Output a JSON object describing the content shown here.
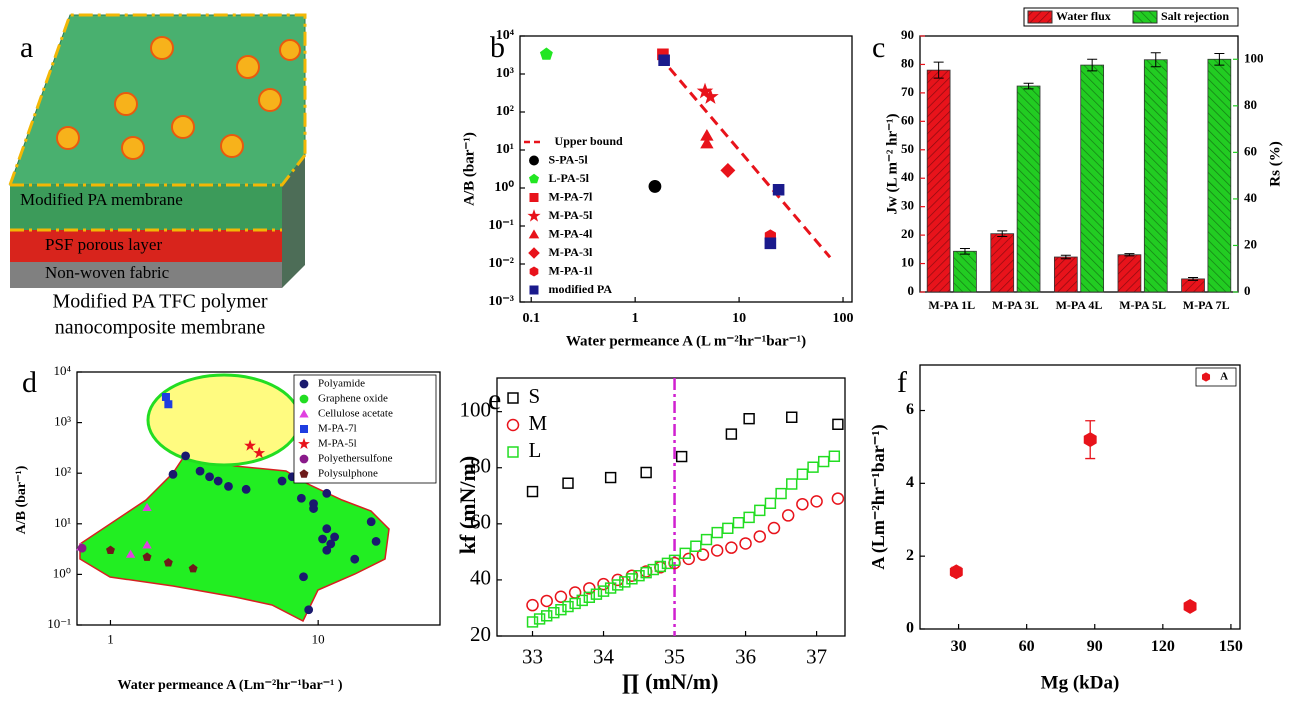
{
  "diagram": {
    "label": "a",
    "layers": [
      "Modified PA membrane",
      "PSF porous layer",
      "Non-woven fabric"
    ],
    "caption": [
      "Modified PA TFC polymer",
      "nanocomposite membrane"
    ]
  },
  "chart_data": [
    {
      "type": "scatter",
      "label": "b",
      "xlabel": "Water permeance A (L m⁻²hr⁻¹bar⁻¹)",
      "ylabel": "A/B (bar⁻¹)",
      "xscale": "log",
      "yscale": "log",
      "xlim": [
        0.078,
        122
      ],
      "ylim": [
        0.001,
        10000
      ],
      "xticks": [
        0.1,
        1,
        10,
        100
      ],
      "yticks": [
        {
          "value": 0.001,
          "label": "10⁻³"
        },
        {
          "value": 0.01,
          "label": "10⁻²"
        },
        {
          "value": 0.1,
          "label": "10⁻¹"
        },
        {
          "value": 1,
          "label": "10⁰"
        },
        {
          "value": 10,
          "label": "10¹"
        },
        {
          "value": 100,
          "label": "10²"
        },
        {
          "value": 1000,
          "label": "10³"
        },
        {
          "value": 10000,
          "label": "10⁴"
        }
      ],
      "legend": "lower left",
      "series": [
        {
          "name": "Upper bound",
          "color": "#e8131b",
          "style": "dashed",
          "x": [
            1.7,
            75
          ],
          "y": [
            3000,
            0.015
          ]
        },
        {
          "name": "S-PA-5l",
          "color": "#000000",
          "marker": "circle",
          "x": [
            1.55
          ],
          "y": [
            1.1
          ]
        },
        {
          "name": "L-PA-5l",
          "color": "#22e622",
          "marker": "pentagon",
          "x": [
            0.14
          ],
          "y": [
            3300
          ]
        },
        {
          "name": "M-PA-7l",
          "color": "#e8131b",
          "marker": "square",
          "x": [
            1.85
          ],
          "y": [
            3300
          ]
        },
        {
          "name": "M-PA-5l",
          "color": "#e8131b",
          "marker": "star",
          "x": [
            4.7,
            5.3
          ],
          "y": [
            350,
            250
          ]
        },
        {
          "name": "M-PA-4l",
          "color": "#e8131b",
          "marker": "triangle",
          "x": [
            4.9,
            4.9
          ],
          "y": [
            24,
            15
          ]
        },
        {
          "name": "M-PA-3l",
          "color": "#e8131b",
          "marker": "diamond",
          "x": [
            7.8
          ],
          "y": [
            2.9
          ]
        },
        {
          "name": "M-PA-1l",
          "color": "#e8131b",
          "marker": "hexagon",
          "x": [
            20
          ],
          "y": [
            0.055
          ]
        },
        {
          "name": "modified PA",
          "color": "#1a1a8c",
          "marker": "square",
          "x": [
            1.9,
            20,
            24
          ],
          "y": [
            2300,
            0.035,
            0.9
          ]
        }
      ]
    },
    {
      "type": "bar",
      "label": "c",
      "ylabel": "Jw (L m⁻² hr⁻¹)",
      "y2label": "Rs (%)",
      "categories": [
        "M-PA 1L",
        "M-PA 3L",
        "M-PA 4L",
        "M-PA 5L",
        "M-PA 7L"
      ],
      "ylim": [
        0,
        90
      ],
      "yticks": [
        0,
        10,
        20,
        30,
        40,
        50,
        60,
        70,
        80,
        90
      ],
      "y2lim": [
        0,
        110
      ],
      "y2ticks": [
        0,
        20,
        40,
        60,
        80,
        100
      ],
      "legend": "top",
      "series": [
        {
          "name": "Water flux",
          "color": "#e8131b",
          "values": [
            78,
            20.5,
            12.3,
            13.1,
            4.6
          ],
          "errors": [
            2.8,
            1,
            0.6,
            0.4,
            0.5
          ]
        },
        {
          "name": "Salt rejection",
          "color": "#22cc22",
          "axis": "y2",
          "values": [
            17.5,
            88.5,
            97.5,
            99.8,
            100
          ],
          "errors": [
            1.2,
            1.2,
            2.5,
            3,
            2.5
          ]
        }
      ]
    },
    {
      "type": "scatter",
      "label": "d",
      "xlabel": "Water permeance A (Lm⁻²hr⁻¹bar⁻¹ )",
      "ylabel": "A/B (bar⁻¹)",
      "xscale": "log",
      "yscale": "log",
      "xlim": [
        0.69,
        38.6
      ],
      "ylim": [
        0.1,
        10000
      ],
      "xticks": [
        1,
        10
      ],
      "yticks": [
        {
          "value": 0.1,
          "label": "10⁻¹"
        },
        {
          "value": 1,
          "label": "10⁰"
        },
        {
          "value": 10,
          "label": "10¹"
        },
        {
          "value": 100,
          "label": "10²"
        },
        {
          "value": 1000,
          "label": "10³"
        },
        {
          "value": 10000,
          "label": "10⁴"
        }
      ],
      "legend": "upper right",
      "series": [
        {
          "name": "Polyamide",
          "color": "#1a1a6e",
          "marker": "circle",
          "x": [
            2.0,
            2.3,
            2.7,
            3.0,
            3.3,
            3.7,
            4.5,
            6.7,
            7.5,
            8.3,
            9.5,
            9.5,
            8.5,
            9.0,
            11,
            11,
            11,
            12,
            11.5,
            10.5,
            15,
            18,
            19
          ],
          "y": [
            95,
            220,
            110,
            85,
            70,
            55,
            48,
            70,
            85,
            32,
            25,
            20,
            0.9,
            0.2,
            40,
            8,
            3,
            5.5,
            4,
            5,
            2,
            11,
            4.5
          ]
        },
        {
          "name": "Graphene oxide",
          "color": "#22dd22",
          "marker": "circle",
          "x": [],
          "y": []
        },
        {
          "name": "Cellulose acetate",
          "color": "#e040e0",
          "marker": "triangle",
          "x": [
            0.72,
            1.25,
            1.5,
            1.5
          ],
          "y": [
            3.5,
            2.5,
            3.8,
            21
          ]
        },
        {
          "name": "M-PA-7l",
          "color": "#1f3de0",
          "marker": "square",
          "x": [
            1.85,
            1.9
          ],
          "y": [
            3200,
            2300
          ]
        },
        {
          "name": "M-PA-5l",
          "color": "#e8131b",
          "marker": "star",
          "x": [
            4.7,
            5.2
          ],
          "y": [
            350,
            250
          ]
        },
        {
          "name": "Polyethersulfone",
          "color": "#8a1a8a",
          "marker": "circle",
          "x": [
            0.73
          ],
          "y": [
            3.3
          ]
        },
        {
          "name": "Polysulphone",
          "color": "#6e1a1a",
          "marker": "pentagon",
          "x": [
            1.0,
            1.5,
            1.9,
            2.5
          ],
          "y": [
            3.0,
            2.2,
            1.7,
            1.3
          ]
        }
      ]
    },
    {
      "type": "scatter",
      "label": "e",
      "xlabel": "∏ (mN/m)",
      "ylabel": "kf (mN/m)",
      "xlim": [
        32.5,
        37.4
      ],
      "ylim": [
        20,
        112
      ],
      "xticks": [
        33,
        34,
        35,
        36,
        37
      ],
      "yticks": [
        20,
        40,
        60,
        80,
        100
      ],
      "legend": "upper left",
      "vline": 35,
      "vline_color": "#d020d0",
      "series": [
        {
          "name": "S",
          "color": "#000000",
          "marker": "square",
          "filled": false,
          "x": [
            33.0,
            33.5,
            34.1,
            34.6,
            35.1,
            35.8,
            36.05,
            36.65,
            37.3
          ],
          "y": [
            71.5,
            74.5,
            76.5,
            78.3,
            84,
            92,
            97.5,
            98,
            95.5
          ]
        },
        {
          "name": "M",
          "color": "#e8131b",
          "marker": "circle",
          "filled": false,
          "x": [
            33.0,
            33.2,
            33.4,
            33.6,
            33.8,
            34.0,
            34.2,
            34.4,
            34.6,
            34.8,
            35.0,
            35.2,
            35.4,
            35.6,
            35.8,
            36.0,
            36.2,
            36.4,
            36.6,
            36.8,
            37.0,
            37.3
          ],
          "y": [
            31,
            32.5,
            34,
            35.5,
            37,
            38.5,
            40,
            41.5,
            43,
            44.5,
            46,
            47.5,
            49,
            50.5,
            51.5,
            53,
            55.5,
            58.5,
            63,
            67,
            68,
            69
          ]
        },
        {
          "name": "L",
          "color": "#22dd22",
          "marker": "square",
          "filled": false,
          "x": [
            33.0,
            33.1,
            33.2,
            33.3,
            33.4,
            33.5,
            33.6,
            33.7,
            33.8,
            33.9,
            34.0,
            34.1,
            34.2,
            34.3,
            34.4,
            34.5,
            34.6,
            34.7,
            34.8,
            34.9,
            35.0,
            35.15,
            35.3,
            35.45,
            35.6,
            35.75,
            35.9,
            36.05,
            36.2,
            36.35,
            36.5,
            36.65,
            36.8,
            36.95,
            37.1,
            37.25
          ],
          "y": [
            25,
            26.1,
            27.2,
            28.3,
            29.4,
            30.5,
            31.6,
            32.7,
            33.8,
            34.9,
            36,
            37.1,
            38.2,
            39.3,
            40.4,
            41.5,
            42.6,
            43.7,
            44.8,
            45.9,
            47,
            49.5,
            52,
            54.4,
            56.9,
            58.4,
            60.4,
            62.3,
            64.8,
            67.3,
            70.8,
            74.2,
            77.7,
            80.2,
            82.2,
            84.1
          ]
        }
      ]
    },
    {
      "type": "scatter",
      "label": "f",
      "xlabel": "Mg (kDa)",
      "ylabel": "A (Lm⁻²hr⁻¹bar⁻¹)",
      "xlim": [
        13,
        154
      ],
      "ylim": [
        0,
        7.25
      ],
      "xticks": [
        30,
        60,
        90,
        120,
        150
      ],
      "yticks": [
        0,
        2,
        4,
        6
      ],
      "legend": "upper right",
      "series": [
        {
          "name": "A",
          "color": "#e8131b",
          "marker": "hexagon",
          "x": [
            29,
            88,
            132
          ],
          "y": [
            1.57,
            5.2,
            0.62
          ],
          "errors": [
            0.12,
            0.52,
            0.06
          ]
        }
      ]
    }
  ]
}
